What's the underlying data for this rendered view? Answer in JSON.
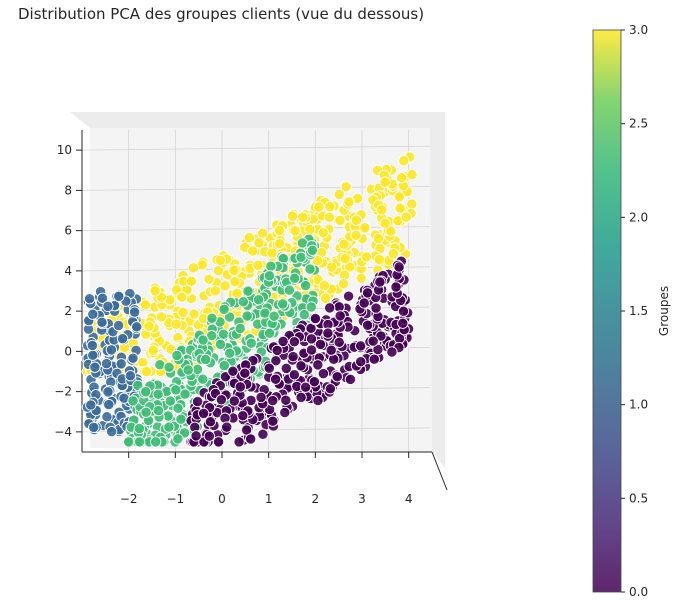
{
  "chart_data": {
    "type": "scatter",
    "title": "Distribution PCA des groupes clients (vue du dessous)",
    "xlabel": "",
    "ylabel": "",
    "xlim": [
      -3.0,
      4.5
    ],
    "ylim": [
      -5.0,
      11.0
    ],
    "x_ticks": [
      -2,
      -1,
      0,
      1,
      2,
      3,
      4
    ],
    "y_ticks": [
      -4,
      -2,
      0,
      2,
      4,
      6,
      8,
      10
    ],
    "grid": true,
    "colorbar": {
      "label": "Groupes",
      "min": 0.0,
      "max": 3.0,
      "ticks": [
        "0.0",
        "0.5",
        "1.0",
        "1.5",
        "2.0",
        "2.5",
        "3.0"
      ],
      "colormap": "viridis"
    },
    "groups": [
      {
        "group": 3,
        "color": "#fde725",
        "x_range": [
          -2.9,
          4.1
        ],
        "y_range": [
          -1.0,
          10.2
        ]
      },
      {
        "group": 1,
        "color": "#3b6c9a",
        "x_range": [
          -2.9,
          -1.8
        ],
        "y_range": [
          -4.0,
          3.0
        ]
      },
      {
        "group": 2,
        "color": "#3ebc74",
        "x_range": [
          -2.0,
          2.0
        ],
        "y_range": [
          -4.5,
          6.5
        ]
      },
      {
        "group": 0,
        "color": "#440154",
        "x_range": [
          -0.7,
          4.0
        ],
        "y_range": [
          -4.5,
          5.0
        ]
      }
    ]
  }
}
